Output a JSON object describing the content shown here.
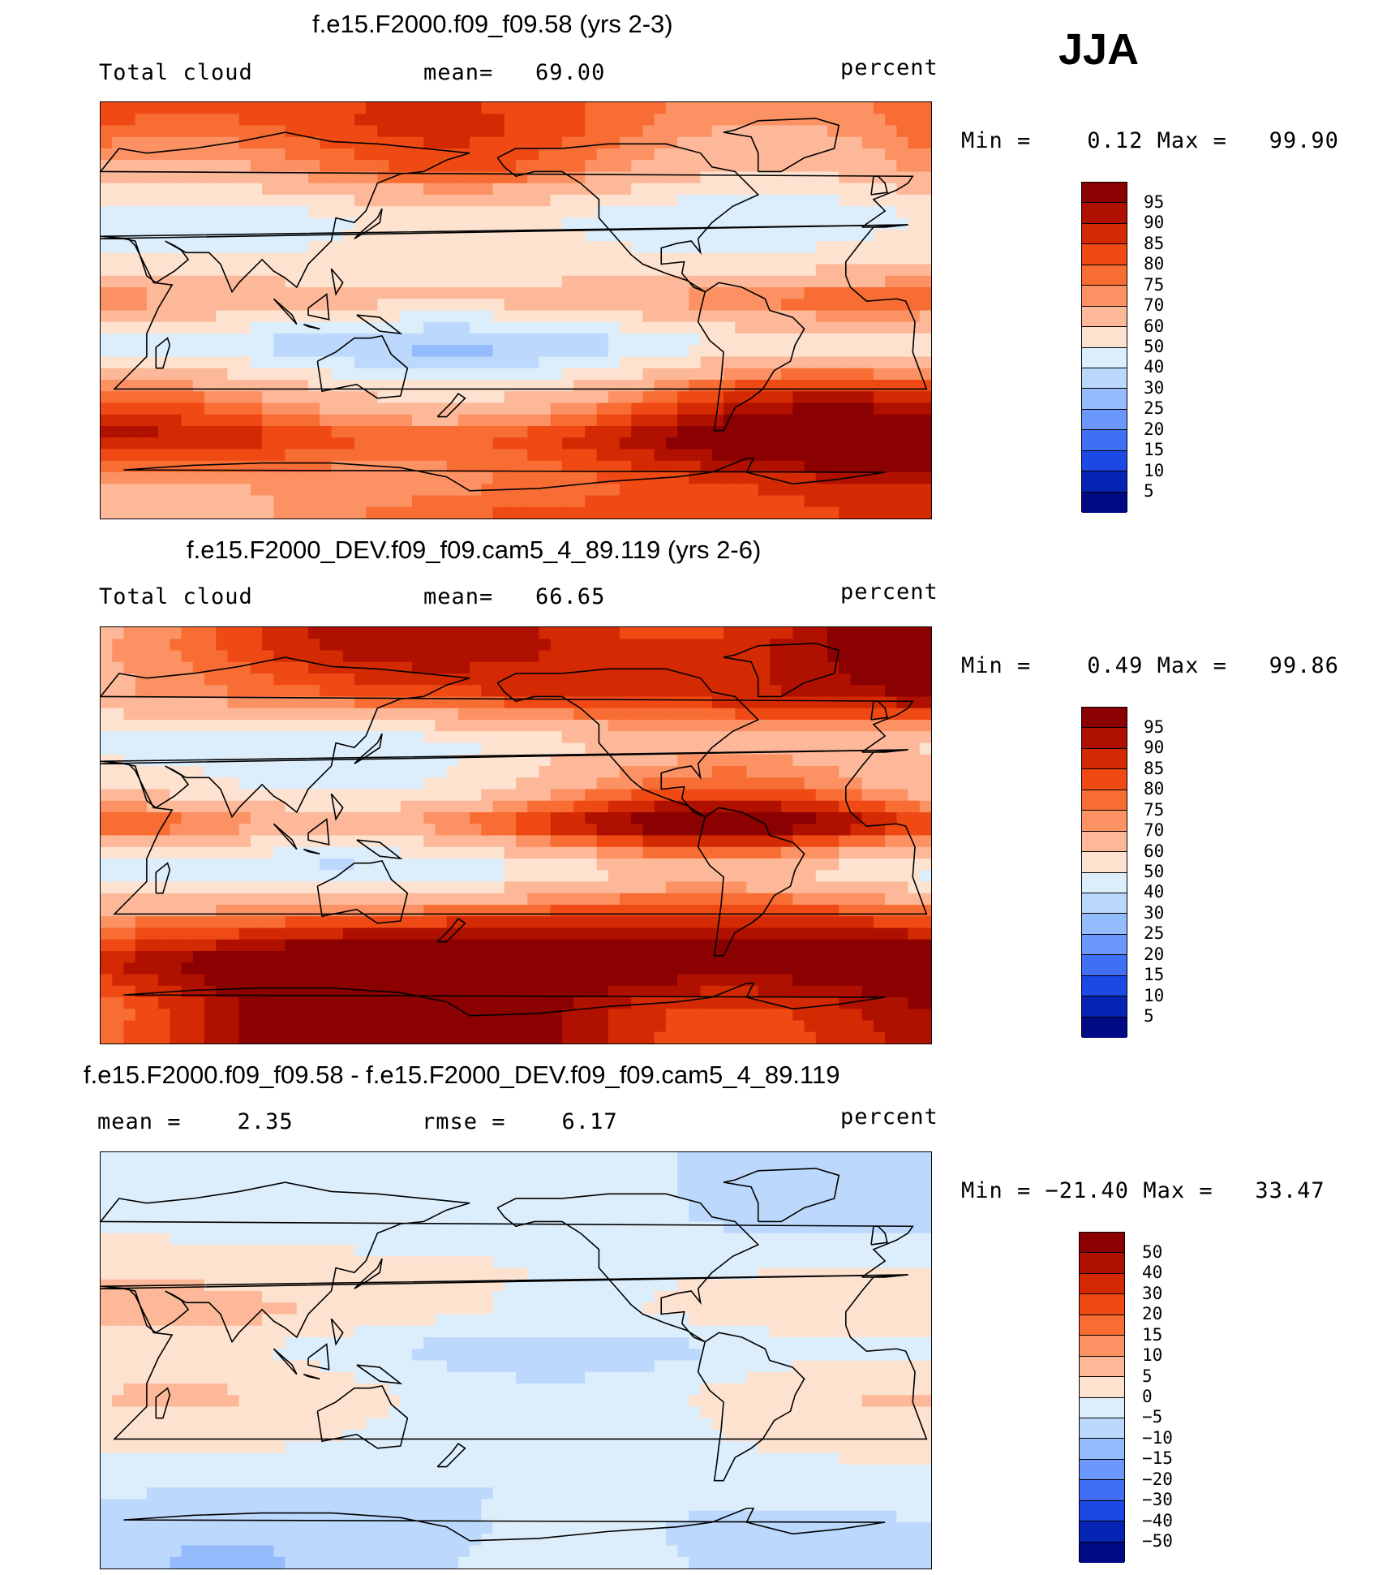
{
  "season": "JJA",
  "palette_abs": [
    "#8b0000",
    "#b01000",
    "#d42a04",
    "#f04a14",
    "#f86d34",
    "#fc9264",
    "#fcb898",
    "#fde2d0",
    "#dceefc",
    "#bcd8fc",
    "#94bcfc",
    "#6c98fc",
    "#406ef4",
    "#1c48e4",
    "#0624b4",
    "#000a84"
  ],
  "palette_diff": [
    "#8b0000",
    "#b01000",
    "#d42a04",
    "#f04a14",
    "#f86d34",
    "#fc9264",
    "#fcb898",
    "#fde2d0",
    "#dceefc",
    "#bcd8fc",
    "#94bcfc",
    "#6c98fc",
    "#406ef4",
    "#1c48e4",
    "#0624b4",
    "#000a84"
  ],
  "land_color": "#000000",
  "panels": [
    {
      "title": "f.e15.F2000.f09_f09.58 (yrs 2-3)",
      "left_label": "Total cloud",
      "mid_label": "mean=   69.00",
      "units": "percent",
      "minmax": "Min =    0.12 Max =   99.90",
      "colorbar_labels": [
        "95",
        "90",
        "85",
        "80",
        "75",
        "70",
        "60",
        "50",
        "40",
        "30",
        "25",
        "20",
        "15",
        "10",
        "5"
      ]
    },
    {
      "title": "f.e15.F2000_DEV.f09_f09.cam5_4_89.119 (yrs 2-6)",
      "left_label": "Total cloud",
      "mid_label": "mean=   66.65",
      "units": "percent",
      "minmax": "Min =    0.49 Max =   99.86",
      "colorbar_labels": [
        "95",
        "90",
        "85",
        "80",
        "75",
        "70",
        "60",
        "50",
        "40",
        "30",
        "25",
        "20",
        "15",
        "10",
        "5"
      ]
    },
    {
      "title": "f.e15.F2000.f09_f09.58 - f.e15.F2000_DEV.f09_f09.cam5_4_89.119",
      "left_label": "mean =    2.35",
      "mid_label": "rmse =    6.17",
      "units": "percent",
      "minmax": "Min = −21.40 Max =   33.47",
      "colorbar_labels": [
        "50",
        "40",
        "30",
        "20",
        "15",
        "10",
        "5",
        "0",
        "−5",
        "−10",
        "−15",
        "−20",
        "−30",
        "−40",
        "−50"
      ]
    }
  ],
  "chart_data": [
    {
      "type": "heatmap",
      "title": "f.e15.F2000.f09_f09.58 (yrs 2-3)",
      "variable": "Total cloud",
      "units": "percent",
      "mean": 69.0,
      "min": 0.12,
      "max": 99.9,
      "levels": [
        5,
        10,
        15,
        20,
        25,
        30,
        40,
        50,
        60,
        70,
        75,
        80,
        85,
        90,
        95
      ],
      "zonal_profile": [
        {
          "lat": 80,
          "value": 88
        },
        {
          "lat": 60,
          "value": 80
        },
        {
          "lat": 40,
          "value": 55
        },
        {
          "lat": 20,
          "value": 62
        },
        {
          "lat": 5,
          "value": 78
        },
        {
          "lat": -15,
          "value": 45
        },
        {
          "lat": -35,
          "value": 75
        },
        {
          "lat": -55,
          "value": 95
        },
        {
          "lat": -75,
          "value": 80
        }
      ]
    },
    {
      "type": "heatmap",
      "title": "f.e15.F2000_DEV.f09_f09.cam5_4_89.119 (yrs 2-6)",
      "variable": "Total cloud",
      "units": "percent",
      "mean": 66.65,
      "min": 0.49,
      "max": 99.86,
      "levels": [
        5,
        10,
        15,
        20,
        25,
        30,
        40,
        50,
        60,
        70,
        75,
        80,
        85,
        90,
        95
      ],
      "zonal_profile": [
        {
          "lat": 80,
          "value": 90
        },
        {
          "lat": 60,
          "value": 82
        },
        {
          "lat": 40,
          "value": 50
        },
        {
          "lat": 20,
          "value": 58
        },
        {
          "lat": 5,
          "value": 80
        },
        {
          "lat": -15,
          "value": 40
        },
        {
          "lat": -35,
          "value": 73
        },
        {
          "lat": -55,
          "value": 96
        },
        {
          "lat": -75,
          "value": 85
        }
      ]
    },
    {
      "type": "heatmap",
      "title": "f.e15.F2000.f09_f09.58 - f.e15.F2000_DEV.f09_f09.cam5_4_89.119",
      "variable": "Total cloud difference",
      "units": "percent",
      "mean": 2.35,
      "rmse": 6.17,
      "min": -21.4,
      "max": 33.47,
      "levels": [
        -50,
        -40,
        -30,
        -20,
        -15,
        -10,
        -5,
        0,
        5,
        10,
        15,
        20,
        30,
        40,
        50
      ],
      "zonal_profile": [
        {
          "lat": 80,
          "value": -3
        },
        {
          "lat": 60,
          "value": -2
        },
        {
          "lat": 40,
          "value": 3
        },
        {
          "lat": 20,
          "value": 5
        },
        {
          "lat": 5,
          "value": -2
        },
        {
          "lat": -15,
          "value": 4
        },
        {
          "lat": -35,
          "value": 2
        },
        {
          "lat": -55,
          "value": -2
        },
        {
          "lat": -75,
          "value": -4
        }
      ]
    }
  ]
}
